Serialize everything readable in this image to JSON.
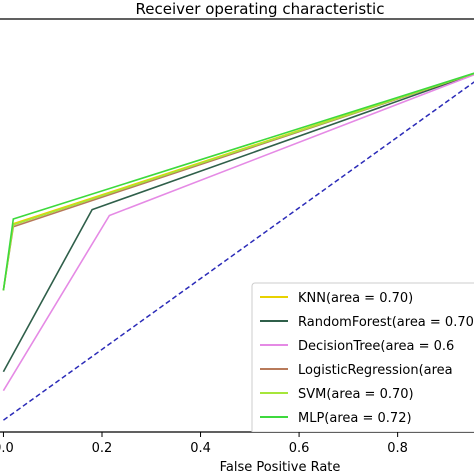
{
  "chart_data": {
    "type": "line",
    "title": "Receiver operating characteristic",
    "xlabel": "False Positive Rate",
    "ylabel": "",
    "xlim": [
      -0.007,
      0.955
    ],
    "ylim": [
      0.38,
      1.08
    ],
    "x_ticks": [
      0.0,
      0.2,
      0.4,
      0.6,
      0.8
    ],
    "x_tick_labels": [
      "0.0",
      "0.2",
      "0.4",
      "0.6",
      "0.8"
    ],
    "grid": false,
    "legend_position": "lower-right",
    "diagonal": {
      "style": "dashed",
      "color": "#2b2bb8",
      "points": [
        [
          0,
          0.4
        ],
        [
          1,
          1.0
        ]
      ]
    },
    "series": [
      {
        "name": "KNN(area = 0.70)",
        "color": "#e8d200",
        "points": [
          [
            0,
            0.62
          ],
          [
            0.02,
            0.733
          ],
          [
            1,
            1.0
          ]
        ]
      },
      {
        "name": "RandomForest(area = 0.70)",
        "color": "#2f5f4a",
        "points": [
          [
            0,
            0.482
          ],
          [
            0.18,
            0.757
          ],
          [
            1,
            1.0
          ]
        ]
      },
      {
        "name": "DecisionTree(area = 0.6",
        "color": "#e58ae5",
        "points": [
          [
            0,
            0.45
          ],
          [
            0.215,
            0.747
          ],
          [
            1,
            1.0
          ]
        ]
      },
      {
        "name": "LogisticRegression(area",
        "color": "#b87a5a",
        "points": [
          [
            0,
            0.62
          ],
          [
            0.02,
            0.728
          ],
          [
            1,
            1.0
          ]
        ]
      },
      {
        "name": "SVM(area = 0.70)",
        "color": "#a6e63a",
        "points": [
          [
            0,
            0.62
          ],
          [
            0.02,
            0.731
          ],
          [
            1,
            1.0
          ]
        ]
      },
      {
        "name": "MLP(area = 0.72)",
        "color": "#3dd93d",
        "points": [
          [
            0,
            0.62
          ],
          [
            0.02,
            0.741
          ],
          [
            1,
            1.0
          ]
        ]
      }
    ]
  }
}
